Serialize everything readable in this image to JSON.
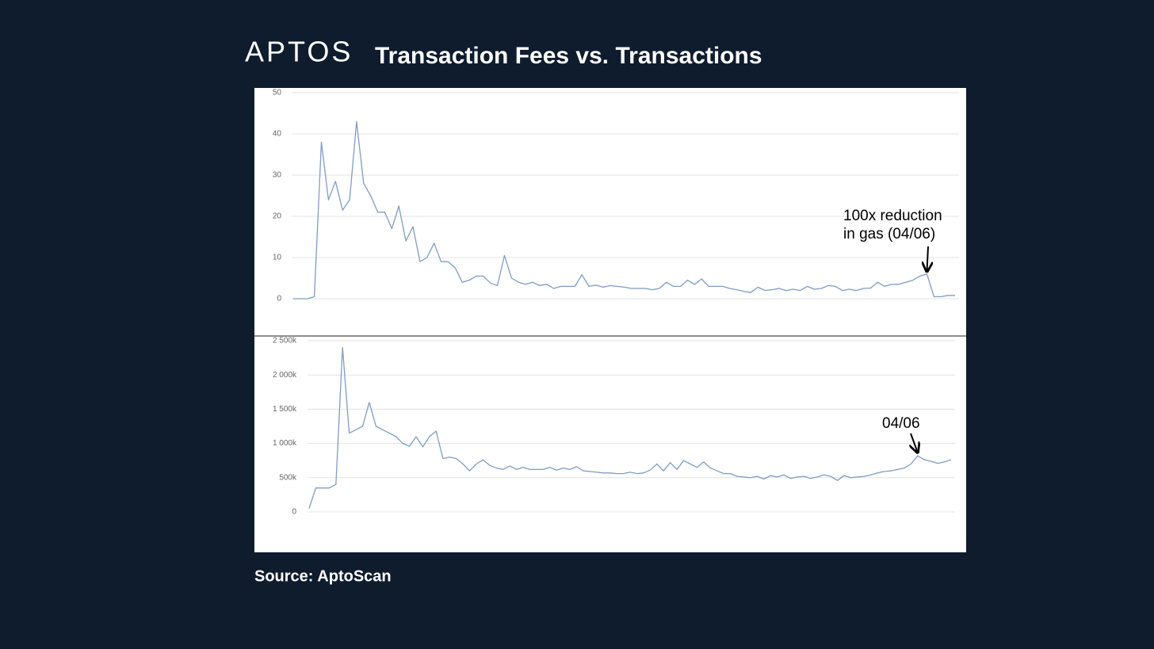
{
  "logo": "APTOS",
  "title": "Transaction Fees vs. Transactions",
  "source": "Source: AptoScan",
  "chart_data": [
    {
      "type": "line",
      "annotation": [
        "100x reduction",
        "in gas (04/06)"
      ],
      "categories": [
        null,
        null,
        null,
        null,
        null,
        null,
        null,
        null,
        null,
        null,
        null,
        null,
        null,
        null,
        null,
        null,
        null,
        null,
        null,
        null,
        null,
        null,
        null,
        null,
        null,
        null,
        null,
        null,
        null,
        null,
        null,
        null,
        null,
        null,
        null,
        null,
        null,
        null,
        null,
        null,
        null,
        null,
        null,
        null,
        null,
        null,
        null,
        null,
        null,
        null,
        null,
        null,
        null,
        null,
        null,
        null,
        null,
        null,
        null,
        null,
        null,
        null,
        null,
        null,
        null,
        null,
        null,
        null,
        null,
        null,
        null,
        null,
        null,
        null,
        null,
        null,
        null,
        null,
        null,
        null,
        null,
        null,
        null,
        null,
        null,
        null,
        null,
        null,
        null,
        null,
        null,
        null,
        null,
        null,
        null
      ],
      "series": [
        {
          "color": "#7f9cc4",
          "values": [
            0,
            0,
            0,
            0.5,
            38,
            24,
            28.5,
            21.5,
            24,
            43,
            28,
            25,
            21,
            21,
            17,
            22.5,
            14,
            17.5,
            9,
            10,
            13.5,
            9,
            9,
            7.5,
            4,
            4.5,
            5.5,
            5.5,
            3.8,
            3.2,
            10.5,
            5,
            4,
            3.5,
            4,
            3.2,
            3.5,
            2.5,
            3,
            3,
            3,
            5.8,
            3,
            3.3,
            2.8,
            3.2,
            3,
            2.8,
            2.5,
            2.5,
            2.5,
            2.2,
            2.5,
            4,
            3,
            3,
            4.5,
            3.5,
            4.8,
            3,
            3,
            3,
            2.5,
            2.2,
            1.8,
            1.5,
            2.8,
            2,
            2.2,
            2.5,
            2,
            2.3,
            2,
            3,
            2.3,
            2.5,
            3.2,
            3,
            2,
            2.3,
            2,
            2.5,
            2.6,
            4,
            3,
            3.5,
            3.5,
            4,
            4.5,
            5.5,
            6,
            0.5,
            0.5,
            0.8,
            0.8
          ]
        }
      ],
      "ylim": [
        0,
        50
      ],
      "yticks": [
        0,
        10,
        20,
        30,
        40,
        50
      ],
      "grid": true
    },
    {
      "type": "line",
      "annotation": [
        "04/06"
      ],
      "categories": [
        null,
        null,
        null,
        null,
        null,
        null,
        null,
        null,
        null,
        null,
        null,
        null,
        null,
        null,
        null,
        null,
        null,
        null,
        null,
        null,
        null,
        null,
        null,
        null,
        null,
        null,
        null,
        null,
        null,
        null,
        null,
        null,
        null,
        null,
        null,
        null,
        null,
        null,
        null,
        null,
        null,
        null,
        null,
        null,
        null,
        null,
        null,
        null,
        null,
        null,
        null,
        null,
        null,
        null,
        null,
        null,
        null,
        null,
        null,
        null,
        null,
        null,
        null,
        null,
        null,
        null,
        null,
        null,
        null,
        null,
        null,
        null,
        null,
        null,
        null,
        null,
        null,
        null,
        null,
        null,
        null,
        null,
        null,
        null,
        null,
        null,
        null,
        null,
        null,
        null,
        null,
        null,
        null,
        null,
        null,
        null,
        null
      ],
      "series": [
        {
          "color": "#7f9cc4",
          "values": [
            50000,
            350000,
            350000,
            350000,
            400000,
            2400000,
            1150000,
            1200000,
            1250000,
            1600000,
            1250000,
            1200000,
            1150000,
            1100000,
            1000000,
            960000,
            1100000,
            950000,
            1100000,
            1180000,
            780000,
            800000,
            780000,
            700000,
            600000,
            700000,
            760000,
            680000,
            640000,
            620000,
            670000,
            620000,
            650000,
            620000,
            620000,
            620000,
            650000,
            610000,
            640000,
            620000,
            660000,
            600000,
            590000,
            580000,
            570000,
            570000,
            560000,
            560000,
            580000,
            560000,
            570000,
            610000,
            700000,
            600000,
            720000,
            620000,
            750000,
            700000,
            650000,
            730000,
            640000,
            600000,
            560000,
            560000,
            520000,
            510000,
            500000,
            520000,
            480000,
            530000,
            510000,
            540000,
            490000,
            510000,
            520000,
            490000,
            510000,
            540000,
            520000,
            460000,
            530000,
            500000,
            510000,
            520000,
            540000,
            570000,
            590000,
            600000,
            620000,
            640000,
            700000,
            820000,
            760000,
            740000,
            710000,
            730000,
            760000
          ]
        }
      ],
      "ylim": [
        0,
        2500000
      ],
      "yticks": [
        0,
        {
          "value": 500000,
          "label": "500k"
        },
        {
          "value": 1000000,
          "label": "1 000k"
        },
        {
          "value": 1500000,
          "label": "1 500k"
        },
        {
          "value": 2000000,
          "label": "2 000k"
        },
        {
          "value": 2500000,
          "label": "2 500k"
        }
      ],
      "grid": true
    }
  ]
}
